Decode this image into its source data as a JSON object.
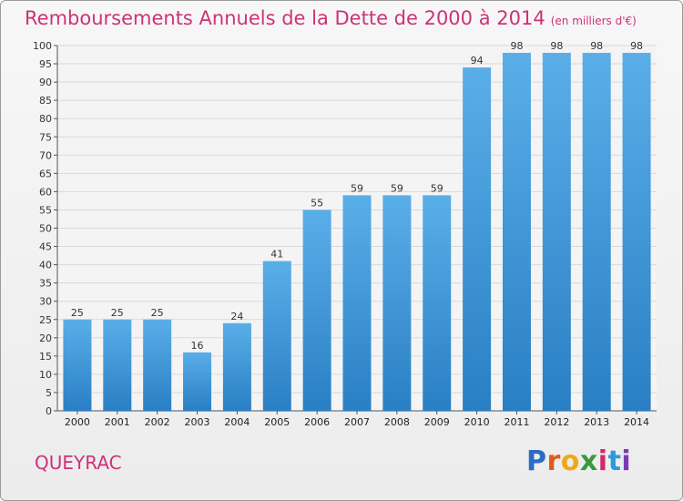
{
  "header": {
    "title": "Remboursements Annuels de la Dette de 2000 à 2014",
    "subtitle": "(en milliers d'€)"
  },
  "footer": {
    "commune": "QUEYRAC",
    "logo_text": "Proxiti"
  },
  "colors": {
    "title": "#cc3377",
    "bar_top": "#5aaee8",
    "bar_bottom": "#2a7fc4",
    "grid": "#d9d9d9"
  },
  "chart_data": {
    "type": "bar",
    "title": "Remboursements Annuels de la Dette de 2000 à 2014",
    "xlabel": "",
    "ylabel": "",
    "categories": [
      "2000",
      "2001",
      "2002",
      "2003",
      "2004",
      "2005",
      "2006",
      "2007",
      "2008",
      "2009",
      "2010",
      "2011",
      "2012",
      "2013",
      "2014"
    ],
    "values": [
      25,
      25,
      25,
      16,
      24,
      41,
      55,
      59,
      59,
      59,
      94,
      98,
      98,
      98,
      98
    ],
    "ylim": [
      0,
      100
    ],
    "ytick_step": 5,
    "grid": true,
    "data_labels": true
  }
}
